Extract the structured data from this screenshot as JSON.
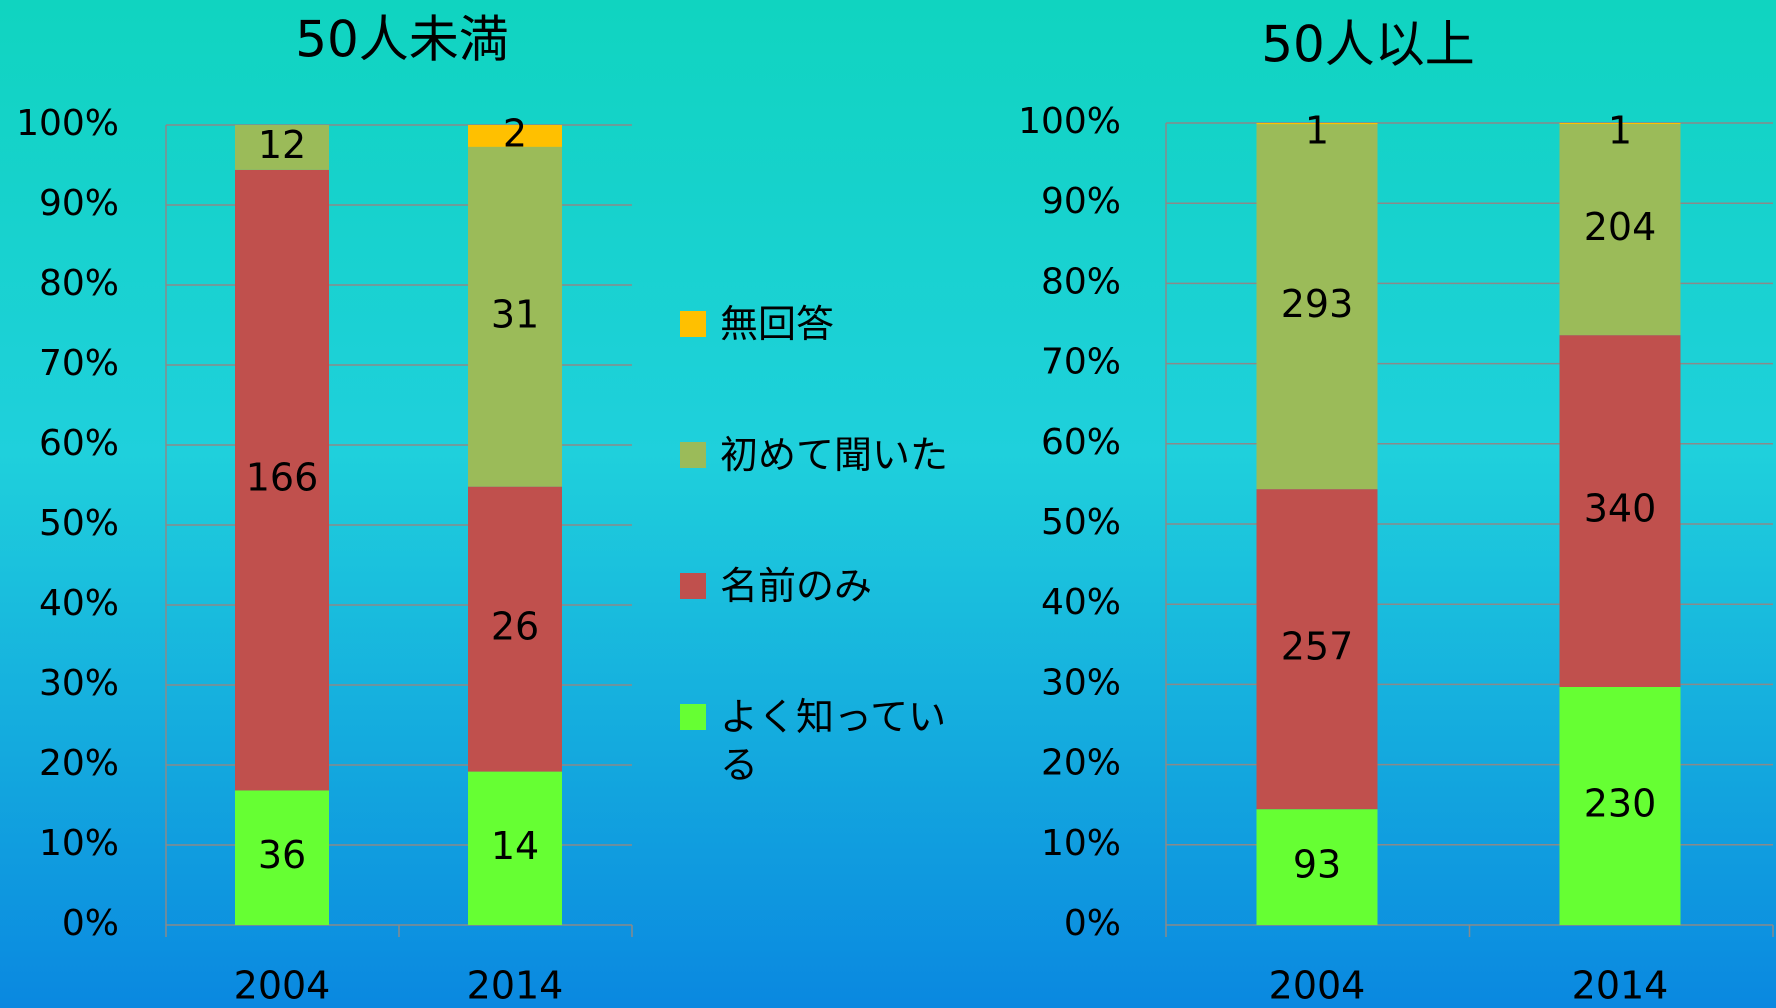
{
  "chart_data": [
    {
      "type": "bar",
      "stacked": "percent",
      "title": "50人未満",
      "categories": [
        "2004",
        "2014"
      ],
      "series": [
        {
          "name": "よく知っている",
          "color": "#66ff33",
          "values": [
            36,
            14
          ]
        },
        {
          "name": "名前のみ",
          "color": "#c0504d",
          "values": [
            166,
            26
          ]
        },
        {
          "name": "初めて聞いた",
          "color": "#9bbb59",
          "values": [
            12,
            31
          ]
        },
        {
          "name": "無回答",
          "color": "#ffc000",
          "values": [
            null,
            2
          ]
        }
      ],
      "ylim": [
        0,
        100
      ],
      "yticks": [
        {
          "value": 0,
          "label": "0%"
        },
        {
          "value": 10,
          "label": "10%"
        },
        {
          "value": 20,
          "label": "20%"
        },
        {
          "value": 30,
          "label": "30%"
        },
        {
          "value": 40,
          "label": "40%"
        },
        {
          "value": 50,
          "label": "50%"
        },
        {
          "value": 60,
          "label": "60%"
        },
        {
          "value": 70,
          "label": "70%"
        },
        {
          "value": 80,
          "label": "80%"
        },
        {
          "value": 90,
          "label": "90%"
        },
        {
          "value": 100,
          "label": "100%"
        }
      ],
      "grid": true
    },
    {
      "type": "bar",
      "stacked": "percent",
      "title": "50人以上",
      "categories": [
        "2004",
        "2014"
      ],
      "series": [
        {
          "name": "よく知っている",
          "color": "#66ff33",
          "values": [
            93,
            230
          ]
        },
        {
          "name": "名前のみ",
          "color": "#c0504d",
          "values": [
            257,
            340
          ]
        },
        {
          "name": "初めて聞いた",
          "color": "#9bbb59",
          "values": [
            293,
            204
          ]
        },
        {
          "name": "無回答",
          "color": "#ffc000",
          "values": [
            1,
            1
          ]
        }
      ],
      "ylim": [
        0,
        100
      ],
      "yticks": [
        {
          "value": 0,
          "label": "0%"
        },
        {
          "value": 10,
          "label": "10%"
        },
        {
          "value": 20,
          "label": "20%"
        },
        {
          "value": 30,
          "label": "30%"
        },
        {
          "value": 40,
          "label": "40%"
        },
        {
          "value": 50,
          "label": "50%"
        },
        {
          "value": 60,
          "label": "60%"
        },
        {
          "value": 70,
          "label": "70%"
        },
        {
          "value": 80,
          "label": "80%"
        },
        {
          "value": 90,
          "label": "90%"
        },
        {
          "value": 100,
          "label": "100%"
        }
      ],
      "grid": true
    }
  ]
}
